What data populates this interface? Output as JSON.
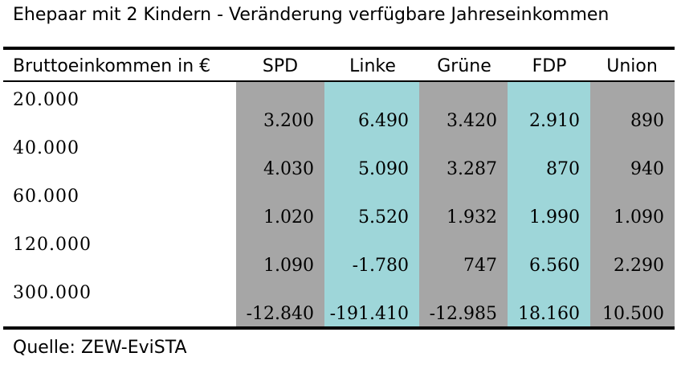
{
  "title": "Ehepaar mit 2 Kindern - Veränderung verfügbare Jahreseinkommen",
  "table": {
    "header_first": "Bruttoeinkommen in €",
    "columns": [
      "SPD",
      "Linke",
      "Grüne",
      "FDP",
      "Union"
    ],
    "column_colors": [
      "#a6a6a6",
      "#9ed6d9",
      "#a6a6a6",
      "#9ed6d9",
      "#a6a6a6"
    ],
    "rows": [
      {
        "income": "20.000",
        "values": [
          "3.200",
          "6.490",
          "3.420",
          "2.910",
          "890"
        ]
      },
      {
        "income": "40.000",
        "values": [
          "4.030",
          "5.090",
          "3.287",
          "870",
          "940"
        ]
      },
      {
        "income": "60.000",
        "values": [
          "1.020",
          "5.520",
          "1.932",
          "1.990",
          "1.090"
        ]
      },
      {
        "income": "120.000",
        "values": [
          "1.090",
          "-1.780",
          "747",
          "6.560",
          "2.290"
        ]
      },
      {
        "income": "300.000",
        "values": [
          "-12.840",
          "-191.410",
          "-12.985",
          "18.160",
          "10.500"
        ]
      }
    ]
  },
  "source": "Quelle: ZEW-EviSTA"
}
